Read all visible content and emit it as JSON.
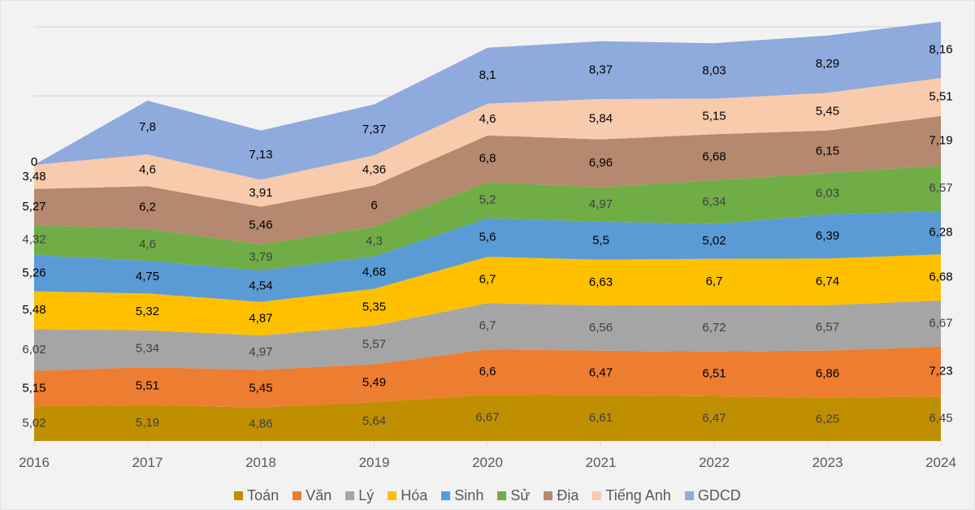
{
  "chart_data": {
    "type": "area",
    "stacked": true,
    "title": "",
    "xlabel": "",
    "ylabel": "",
    "ylim": [
      0,
      60
    ],
    "grid": true,
    "gridline_step": 10,
    "y_axis_labels_visible": false,
    "legend_position": "bottom",
    "categories": [
      "2016",
      "2017",
      "2018",
      "2019",
      "2020",
      "2021",
      "2022",
      "2023",
      "2024"
    ],
    "series": [
      {
        "name": "Toán",
        "color": "#BF8F00",
        "label_color": "#404040",
        "values": [
          5.02,
          5.19,
          4.86,
          5.64,
          6.67,
          6.61,
          6.47,
          6.25,
          6.45
        ],
        "labels": [
          "5,02",
          "5,19",
          "4,86",
          "5,64",
          "6,67",
          "6,61",
          "6,47",
          "6,25",
          "6,45"
        ]
      },
      {
        "name": "Văn",
        "color": "#ED7D31",
        "label_color": "#000000",
        "values": [
          5.15,
          5.51,
          5.45,
          5.49,
          6.6,
          6.47,
          6.51,
          6.86,
          7.23
        ],
        "labels": [
          "5,15",
          "5,51",
          "5,45",
          "5,49",
          "6,6",
          "6,47",
          "6,51",
          "6,86",
          "7,23"
        ]
      },
      {
        "name": "Lý",
        "color": "#A5A5A5",
        "label_color": "#404040",
        "values": [
          6.02,
          5.34,
          4.97,
          5.57,
          6.7,
          6.56,
          6.72,
          6.57,
          6.67
        ],
        "labels": [
          "6,02",
          "5,34",
          "4,97",
          "5,57",
          "6,7",
          "6,56",
          "6,72",
          "6,57",
          "6,67"
        ]
      },
      {
        "name": "Hóa",
        "color": "#FFC000",
        "label_color": "#000000",
        "values": [
          5.48,
          5.32,
          4.87,
          5.35,
          6.7,
          6.63,
          6.7,
          6.74,
          6.68
        ],
        "labels": [
          "5,48",
          "5,32",
          "4,87",
          "5,35",
          "6,7",
          "6,63",
          "6,7",
          "6,74",
          "6,68"
        ]
      },
      {
        "name": "Sinh",
        "color": "#5B9BD5",
        "label_color": "#000000",
        "values": [
          5.26,
          4.75,
          4.54,
          4.68,
          5.6,
          5.5,
          5.02,
          6.39,
          6.28
        ],
        "labels": [
          "5,26",
          "4,75",
          "4,54",
          "4,68",
          "5,6",
          "5,5",
          "5,02",
          "6,39",
          "6,28"
        ]
      },
      {
        "name": "Sử",
        "color": "#70AD47",
        "label_color": "#404040",
        "values": [
          4.32,
          4.6,
          3.79,
          4.3,
          5.2,
          4.97,
          6.34,
          6.03,
          6.57
        ],
        "labels": [
          "4,32",
          "4,6",
          "3,79",
          "4,3",
          "5,2",
          "4,97",
          "6,34",
          "6,03",
          "6,57"
        ]
      },
      {
        "name": "Địa",
        "color": "#B5896F",
        "label_color": "#000000",
        "values": [
          5.27,
          6.2,
          5.46,
          6,
          6.8,
          6.96,
          6.68,
          6.15,
          7.19
        ],
        "labels": [
          "5,27",
          "6,2",
          "5,46",
          "6",
          "6,8",
          "6,96",
          "6,68",
          "6,15",
          "7,19"
        ]
      },
      {
        "name": "Tiếng Anh",
        "color": "#F8CBAD",
        "label_color": "#000000",
        "values": [
          3.48,
          4.6,
          3.91,
          4.36,
          4.6,
          5.84,
          5.15,
          5.45,
          5.51
        ],
        "labels": [
          "3,48",
          "4,6",
          "3,91",
          "4,36",
          "4,6",
          "5,84",
          "5,15",
          "5,45",
          "5,51"
        ]
      },
      {
        "name": "GDCD",
        "color": "#8FAADC",
        "label_color": "#000000",
        "values": [
          0,
          7.8,
          7.13,
          7.37,
          8.1,
          8.37,
          8.03,
          8.29,
          8.16
        ],
        "labels": [
          "0",
          "7,8",
          "7,13",
          "7,37",
          "8,1",
          "8,37",
          "8,03",
          "8,29",
          "8,16"
        ]
      }
    ]
  }
}
